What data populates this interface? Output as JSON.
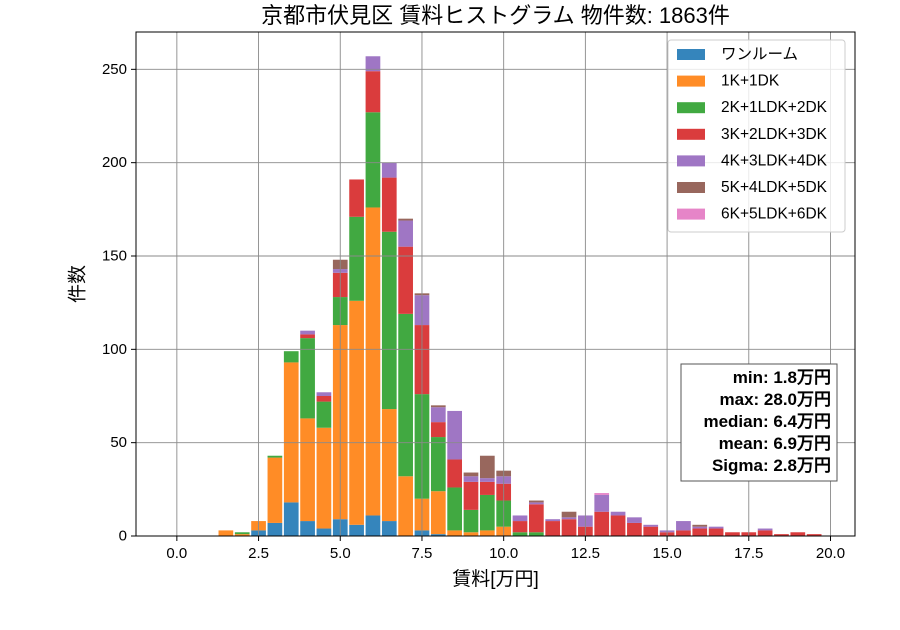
{
  "chart_data": {
    "type": "bar",
    "stacked": true,
    "title": "京都市伏見区 賃料ヒストグラム 物件数: 1863件",
    "xlabel": "賃料[万円]",
    "ylabel": "件数",
    "xlim": [
      -1.25,
      20.75
    ],
    "ylim": [
      0,
      270
    ],
    "xticks": [
      "0.0",
      "2.5",
      "5.0",
      "7.5",
      "10.0",
      "12.5",
      "15.0",
      "17.5",
      "20.0"
    ],
    "yticks": [
      "0",
      "50",
      "100",
      "150",
      "200",
      "250"
    ],
    "grid": true,
    "legend_position": "upper right",
    "x": [
      1.5,
      2.0,
      2.5,
      3.0,
      3.5,
      4.0,
      4.5,
      5.0,
      5.5,
      6.0,
      6.5,
      7.0,
      7.5,
      8.0,
      8.5,
      9.0,
      9.5,
      10.0,
      10.5,
      11.0,
      11.5,
      12.0,
      12.5,
      13.0,
      13.5,
      14.0,
      14.5,
      15.0,
      15.5,
      16.0,
      16.5,
      17.0,
      17.5,
      18.0,
      18.5,
      19.0,
      19.5
    ],
    "series": [
      {
        "name": "ワンルーム",
        "color": "#3585bc",
        "values": [
          0,
          0,
          3,
          7,
          18,
          8,
          4,
          9,
          6,
          11,
          8,
          0,
          3,
          1,
          0,
          0,
          0,
          0,
          0,
          0,
          0,
          0,
          0,
          0,
          0,
          0,
          0,
          0,
          0,
          0,
          0,
          0,
          0,
          0,
          0,
          0,
          0
        ]
      },
      {
        "name": "1K+1DK",
        "color": "#ff8c26",
        "values": [
          3,
          1,
          5,
          35,
          75,
          55,
          54,
          104,
          120,
          165,
          60,
          32,
          17,
          23,
          3,
          2,
          3,
          5,
          0,
          0,
          0,
          0,
          0,
          0,
          0,
          0,
          0,
          0,
          0,
          0,
          0,
          0,
          0,
          0,
          0,
          0,
          0
        ]
      },
      {
        "name": "2K+1LDK+2DK",
        "color": "#41a941",
        "values": [
          0,
          1,
          0,
          1,
          6,
          43,
          14,
          15,
          45,
          51,
          95,
          87,
          56,
          29,
          23,
          12,
          19,
          14,
          2,
          2,
          0,
          0,
          0,
          0,
          0,
          0,
          0,
          0,
          0,
          0,
          0,
          0,
          0,
          0,
          0,
          0,
          0
        ]
      },
      {
        "name": "3K+2LDK+3DK",
        "color": "#da3c3d",
        "values": [
          0,
          0,
          0,
          0,
          0,
          2,
          3,
          13,
          20,
          22,
          29,
          36,
          37,
          8,
          15,
          15,
          7,
          9,
          6,
          15,
          8,
          9,
          5,
          13,
          11,
          7,
          5,
          2,
          3,
          4,
          4,
          2,
          2,
          3,
          1,
          2,
          1
        ]
      },
      {
        "name": "4K+3LDK+4DK",
        "color": "#9f76c4",
        "values": [
          0,
          0,
          0,
          0,
          0,
          2,
          2,
          2,
          0,
          8,
          8,
          14,
          16,
          8,
          26,
          3,
          2,
          4,
          3,
          1,
          1,
          1,
          6,
          9,
          2,
          3,
          1,
          1,
          5,
          1,
          1,
          0,
          0,
          1,
          0,
          0,
          0
        ]
      },
      {
        "name": "5K+4LDK+5DK",
        "color": "#98675d",
        "values": [
          0,
          0,
          0,
          0,
          0,
          0,
          0,
          5,
          0,
          0,
          0,
          1,
          1,
          1,
          0,
          2,
          12,
          3,
          0,
          1,
          0,
          3,
          0,
          0,
          0,
          0,
          0,
          0,
          0,
          1,
          0,
          0,
          0,
          0,
          0,
          0,
          0
        ]
      },
      {
        "name": "6K+5LDK+6DK",
        "color": "#e685c8",
        "values": [
          0,
          0,
          0,
          0,
          0,
          0,
          0,
          0,
          0,
          0,
          0,
          0,
          0,
          0,
          0,
          0,
          0,
          0,
          0,
          0,
          0,
          0,
          0,
          1,
          0,
          0,
          0,
          0,
          0,
          0,
          0,
          0,
          0,
          0,
          0,
          0,
          0
        ]
      }
    ],
    "annotation_position": "right",
    "annotation_lines": [
      "min: 1.8万円",
      "max: 28.0万円",
      "median: 6.4万円",
      "mean: 6.9万円",
      "Sigma: 2.8万円"
    ]
  }
}
